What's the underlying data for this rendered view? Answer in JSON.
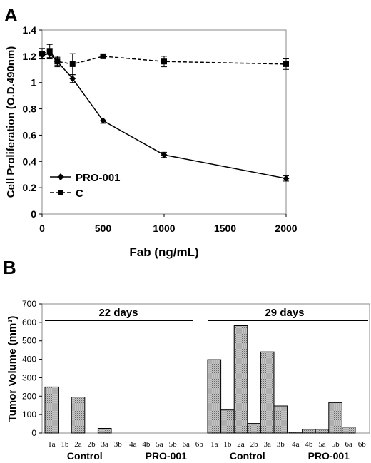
{
  "chart_data": [
    {
      "panel_label": "A",
      "type": "line",
      "xlabel": "Fab (ng/mL)",
      "ylabel": "Cell Proliferation (O.D.490nm)",
      "xlim": [
        0,
        2000
      ],
      "ylim": [
        0,
        1.4
      ],
      "x_ticks": [
        "0",
        "500",
        "1000",
        "1500",
        "2000"
      ],
      "y_ticks": [
        "0",
        "0.2",
        "0.4",
        "0.6",
        "0.8",
        "1",
        "1.2",
        "1.4"
      ],
      "legend_position": "bottom-left",
      "series": [
        {
          "name": "PRO-001",
          "line_style": "solid",
          "marker": "diamond",
          "x": [
            0,
            62.5,
            125,
            250,
            500,
            1000,
            2000
          ],
          "y": [
            1.21,
            1.22,
            1.16,
            1.03,
            0.71,
            0.45,
            0.27
          ],
          "error": [
            0.03,
            0.04,
            0.03,
            0.03,
            0.02,
            0.02,
            0.02
          ]
        },
        {
          "name": "C",
          "line_style": "dashed",
          "marker": "square",
          "x": [
            0,
            62.5,
            125,
            250,
            500,
            1000,
            2000
          ],
          "y": [
            1.22,
            1.24,
            1.16,
            1.14,
            1.2,
            1.16,
            1.14
          ],
          "error": [
            0.04,
            0.05,
            0.04,
            0.08,
            0.01,
            0.04,
            0.04
          ]
        }
      ]
    },
    {
      "panel_label": "B",
      "type": "bar",
      "ylabel": "Tumor Volume (mm³)",
      "ylim": [
        0,
        700
      ],
      "y_ticks": [
        "0",
        "100",
        "200",
        "300",
        "400",
        "500",
        "600",
        "700"
      ],
      "bar_color": "#bfbfbf",
      "groups": [
        {
          "label": "Control",
          "timepoint": "22 days",
          "categories": [
            "1a",
            "1b",
            "2a",
            "2b",
            "3a",
            "3b"
          ],
          "values": [
            250,
            0,
            195,
            0,
            25,
            0
          ]
        },
        {
          "label": "PRO-001",
          "timepoint": "22 days",
          "categories": [
            "4a",
            "4b",
            "5a",
            "5b",
            "6a",
            "6b"
          ],
          "values": [
            0,
            0,
            0,
            0,
            0,
            0
          ]
        },
        {
          "label": "Control",
          "timepoint": "29 days",
          "categories": [
            "1a",
            "1b",
            "2a",
            "2b",
            "3a",
            "3b"
          ],
          "values": [
            398,
            125,
            582,
            52,
            440,
            147
          ]
        },
        {
          "label": "PRO-001",
          "timepoint": "29 days",
          "categories": [
            "4a",
            "4b",
            "5a",
            "5b",
            "6a",
            "6b"
          ],
          "values": [
            5,
            20,
            20,
            165,
            32,
            0
          ]
        }
      ],
      "timepoints": [
        "22 days",
        "29 days"
      ]
    }
  ]
}
